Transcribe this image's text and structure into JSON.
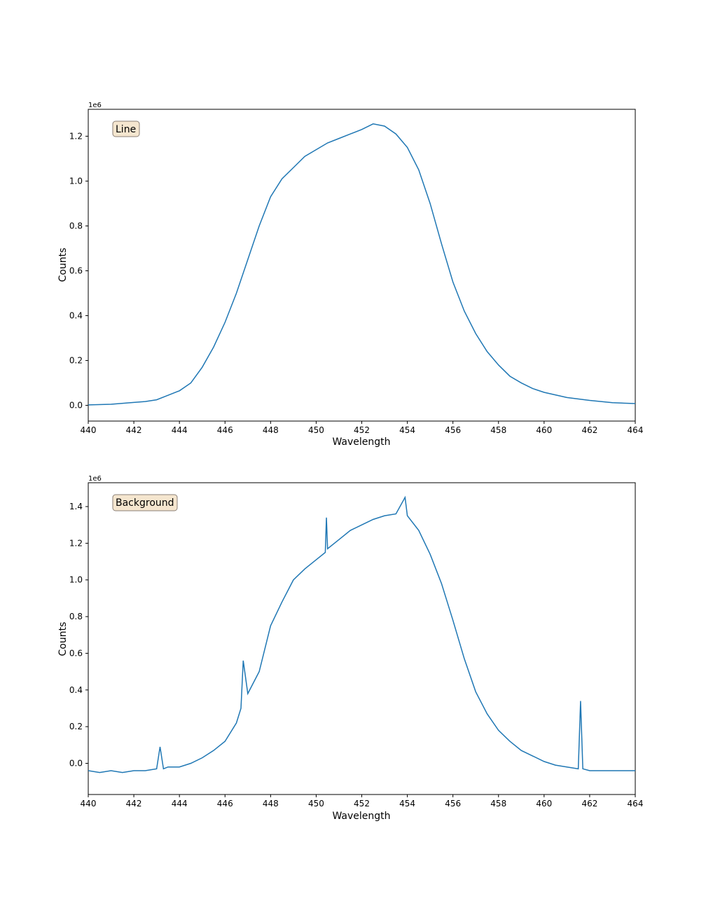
{
  "chart_data": [
    {
      "type": "line",
      "panel_label": "Line",
      "xlabel": "Wavelength",
      "ylabel": "Counts",
      "offset_label": "1e6",
      "xlim": [
        440,
        464
      ],
      "ylim": [
        -0.07,
        1.32
      ],
      "x_ticks": [
        440,
        442,
        444,
        446,
        448,
        450,
        452,
        454,
        456,
        458,
        460,
        462,
        464
      ],
      "y_ticks": [
        0.0,
        0.2,
        0.4,
        0.6,
        0.8,
        1.0,
        1.2
      ],
      "series_color": "#1f77b4",
      "x": [
        440,
        441,
        442,
        442.5,
        443,
        443.5,
        444,
        444.5,
        445,
        445.5,
        446,
        446.5,
        447,
        447.5,
        448,
        448.5,
        449,
        449.5,
        450,
        450.5,
        451,
        451.5,
        452,
        452.5,
        453,
        453.5,
        454,
        454.5,
        455,
        455.5,
        456,
        456.5,
        457,
        457.5,
        458,
        458.5,
        459,
        459.5,
        460,
        461,
        462,
        463,
        464
      ],
      "values": [
        0.002,
        0.005,
        0.013,
        0.017,
        0.025,
        0.045,
        0.065,
        0.1,
        0.17,
        0.26,
        0.37,
        0.5,
        0.65,
        0.8,
        0.93,
        1.01,
        1.06,
        1.11,
        1.14,
        1.17,
        1.19,
        1.21,
        1.23,
        1.255,
        1.245,
        1.21,
        1.15,
        1.05,
        0.9,
        0.72,
        0.55,
        0.42,
        0.32,
        0.24,
        0.18,
        0.13,
        0.1,
        0.075,
        0.058,
        0.035,
        0.022,
        0.012,
        0.008
      ]
    },
    {
      "type": "line",
      "panel_label": "Background",
      "xlabel": "Wavelength",
      "ylabel": "Counts",
      "offset_label": "1e6",
      "xlim": [
        440,
        464
      ],
      "ylim": [
        -0.17,
        1.53
      ],
      "x_ticks": [
        440,
        442,
        444,
        446,
        448,
        450,
        452,
        454,
        456,
        458,
        460,
        462,
        464
      ],
      "y_ticks": [
        0.0,
        0.2,
        0.4,
        0.6,
        0.8,
        1.0,
        1.2,
        1.4
      ],
      "series_color": "#1f77b4",
      "x": [
        440,
        440.5,
        441,
        441.5,
        442,
        442.5,
        443,
        443.15,
        443.3,
        443.5,
        444,
        444.5,
        445,
        445.5,
        446,
        446.5,
        446.7,
        446.8,
        447,
        447.5,
        448,
        448.5,
        449,
        449.5,
        450,
        450.4,
        450.45,
        450.5,
        451,
        451.5,
        452,
        452.5,
        453,
        453.5,
        453.9,
        454,
        454.5,
        455,
        455.5,
        456,
        456.5,
        457,
        457.5,
        458,
        458.5,
        459,
        459.5,
        460,
        460.5,
        461,
        461.5,
        461.6,
        461.7,
        462,
        462.5,
        463,
        463.5,
        464
      ],
      "values": [
        -0.04,
        -0.05,
        -0.04,
        -0.05,
        -0.04,
        -0.04,
        -0.03,
        0.09,
        -0.03,
        -0.02,
        -0.02,
        0.0,
        0.03,
        0.07,
        0.12,
        0.22,
        0.3,
        0.56,
        0.38,
        0.5,
        0.75,
        0.88,
        1.0,
        1.06,
        1.11,
        1.15,
        1.34,
        1.17,
        1.22,
        1.27,
        1.3,
        1.33,
        1.35,
        1.36,
        1.45,
        1.35,
        1.27,
        1.14,
        0.98,
        0.78,
        0.57,
        0.39,
        0.27,
        0.18,
        0.12,
        0.07,
        0.04,
        0.01,
        -0.01,
        -0.02,
        -0.03,
        0.34,
        -0.03,
        -0.04,
        -0.04,
        -0.04,
        -0.04,
        -0.04
      ]
    }
  ]
}
